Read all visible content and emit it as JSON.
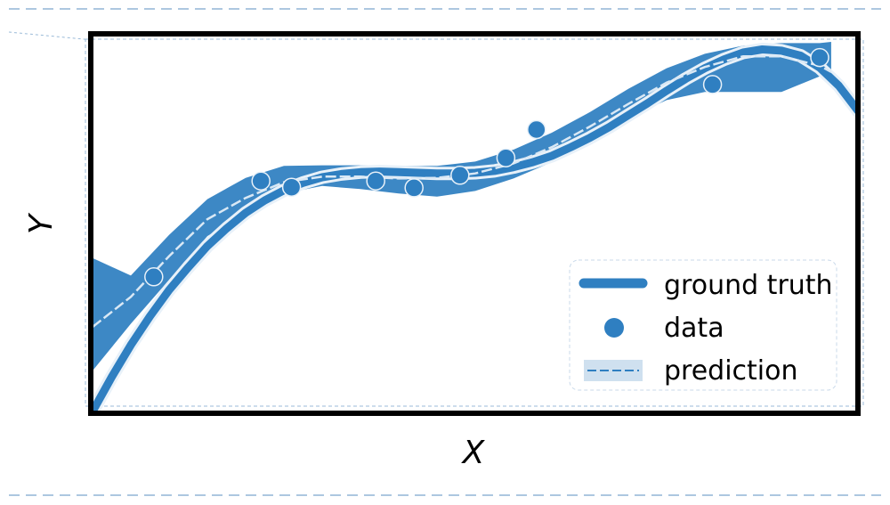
{
  "chart_data": {
    "type": "line",
    "title": "",
    "xlabel": "X",
    "ylabel": "Y",
    "xlim": [
      0,
      10
    ],
    "ylim": [
      -0.5,
      5.5
    ],
    "grid": false,
    "legend_position": "bottom-right",
    "colors": {
      "main": "#2f7fc1",
      "band": "#3d88c5",
      "band_legend": "#cfe0ef",
      "prediction_line": "#d9e8f5",
      "frame": "#000000"
    },
    "series": [
      {
        "name": "ground truth",
        "kind": "line",
        "x": [
          0.0,
          0.25,
          0.5,
          0.75,
          1.0,
          1.25,
          1.5,
          1.75,
          2.0,
          2.25,
          2.5,
          2.75,
          3.0,
          3.25,
          3.5,
          3.75,
          4.0,
          4.25,
          4.5,
          4.75,
          5.0,
          5.25,
          5.5,
          5.75,
          6.0,
          6.25,
          6.5,
          6.75,
          7.0,
          7.25,
          7.5,
          7.75,
          8.0,
          8.25,
          8.5,
          8.75,
          9.0,
          9.25,
          9.5,
          9.75,
          10.0
        ],
        "y": [
          -0.5,
          0.05,
          0.56,
          1.02,
          1.44,
          1.8,
          2.14,
          2.42,
          2.67,
          2.87,
          3.03,
          3.15,
          3.24,
          3.29,
          3.32,
          3.33,
          3.32,
          3.31,
          3.3,
          3.3,
          3.31,
          3.34,
          3.4,
          3.48,
          3.58,
          3.72,
          3.87,
          4.04,
          4.23,
          4.42,
          4.62,
          4.81,
          4.98,
          5.12,
          5.23,
          5.28,
          5.26,
          5.18,
          4.99,
          4.7,
          4.3
        ]
      },
      {
        "name": "data",
        "kind": "scatter",
        "x": [
          0.8,
          2.2,
          2.6,
          3.7,
          4.2,
          4.8,
          5.4,
          5.8,
          8.1,
          9.5
        ],
        "y": [
          1.65,
          3.18,
          3.08,
          3.18,
          3.07,
          3.27,
          3.55,
          4.0,
          4.72,
          5.15
        ]
      },
      {
        "name": "prediction",
        "kind": "band",
        "x": [
          0.0,
          0.5,
          1.0,
          1.5,
          2.0,
          2.5,
          3.0,
          3.5,
          4.0,
          4.5,
          5.0,
          5.5,
          6.0,
          6.5,
          7.0,
          7.5,
          8.0,
          8.5,
          9.0,
          9.5,
          9.65
        ],
        "mean": [
          0.85,
          1.33,
          1.98,
          2.57,
          2.91,
          3.16,
          3.25,
          3.25,
          3.22,
          3.23,
          3.3,
          3.46,
          3.72,
          4.05,
          4.41,
          4.75,
          5.0,
          5.17,
          5.17,
          5.02,
          4.92
        ],
        "lower": [
          0.15,
          0.9,
          1.6,
          2.3,
          2.68,
          2.98,
          3.1,
          3.05,
          2.98,
          2.93,
          3.02,
          3.22,
          3.48,
          3.83,
          4.18,
          4.47,
          4.6,
          4.6,
          4.6,
          4.85,
          4.92
        ],
        "upper": [
          1.95,
          1.67,
          2.32,
          2.89,
          3.23,
          3.42,
          3.43,
          3.43,
          3.42,
          3.42,
          3.49,
          3.68,
          3.95,
          4.28,
          4.65,
          4.98,
          5.21,
          5.34,
          5.38,
          5.38,
          5.4
        ]
      }
    ]
  }
}
